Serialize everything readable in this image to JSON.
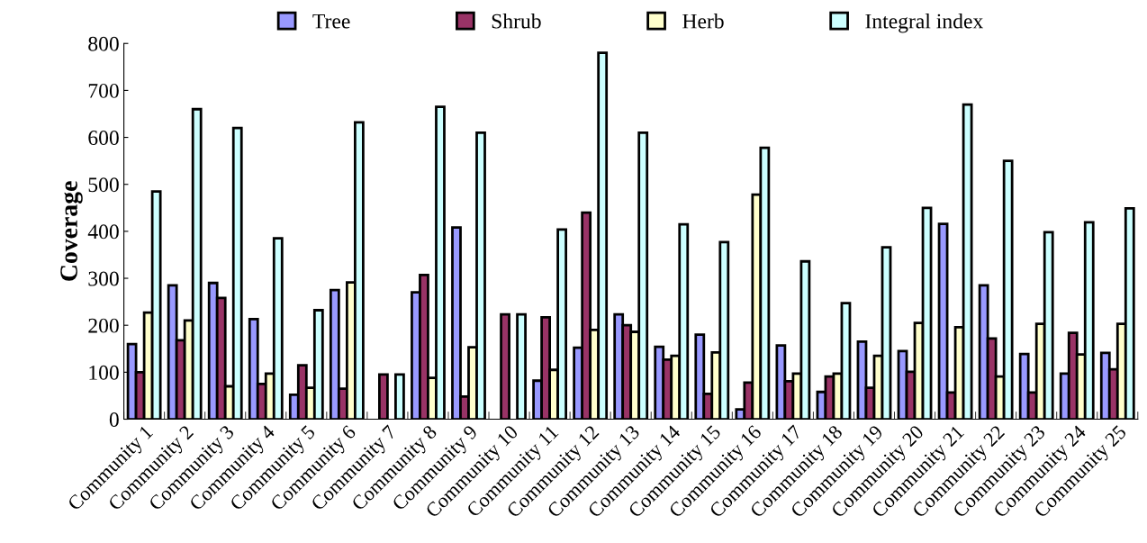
{
  "chart_data": {
    "type": "bar",
    "ylabel": "Coverage",
    "categories": [
      "Community 1",
      "Community 2",
      "Community 3",
      "Community 4",
      "Community 5",
      "Community 6",
      "Community 7",
      "Community 8",
      "Community 9",
      "Community 10",
      "Community 11",
      "Community 12",
      "Community 13",
      "Community 14",
      "Community 15",
      "Community 16",
      "Community 17",
      "Community 18",
      "Community 19",
      "Community 20",
      "Community 21",
      "Community 22",
      "Community 23",
      "Community 24",
      "Community 25"
    ],
    "series": [
      {
        "name": "Tree",
        "color": "#9999ff",
        "values": [
          160,
          285,
          290,
          213,
          52,
          275,
          null,
          270,
          408,
          null,
          82,
          152,
          223,
          154,
          180,
          21,
          157,
          58,
          165,
          145,
          416,
          285,
          139,
          97,
          141
        ]
      },
      {
        "name": "Shrub",
        "color": "#993366",
        "values": [
          100,
          168,
          258,
          75,
          115,
          65,
          95,
          307,
          48,
          223,
          217,
          440,
          200,
          127,
          54,
          78,
          81,
          91,
          67,
          101,
          57,
          172,
          57,
          184,
          106
        ]
      },
      {
        "name": "Herb",
        "color": "#ffffcc",
        "values": [
          227,
          210,
          70,
          97,
          67,
          291,
          null,
          88,
          153,
          null,
          105,
          190,
          186,
          135,
          142,
          478,
          97,
          97,
          135,
          205,
          196,
          91,
          203,
          138,
          203
        ]
      },
      {
        "name": "Integral index",
        "color": "#ccffff",
        "values": [
          485,
          660,
          620,
          385,
          232,
          632,
          95,
          665,
          610,
          223,
          404,
          780,
          610,
          415,
          377,
          578,
          336,
          247,
          366,
          450,
          670,
          550,
          398,
          419,
          449
        ]
      }
    ],
    "ylim": [
      0,
      800
    ],
    "yticks": [
      0,
      100,
      200,
      300,
      400,
      500,
      600,
      700,
      800
    ],
    "grid": false,
    "legend": "top"
  }
}
